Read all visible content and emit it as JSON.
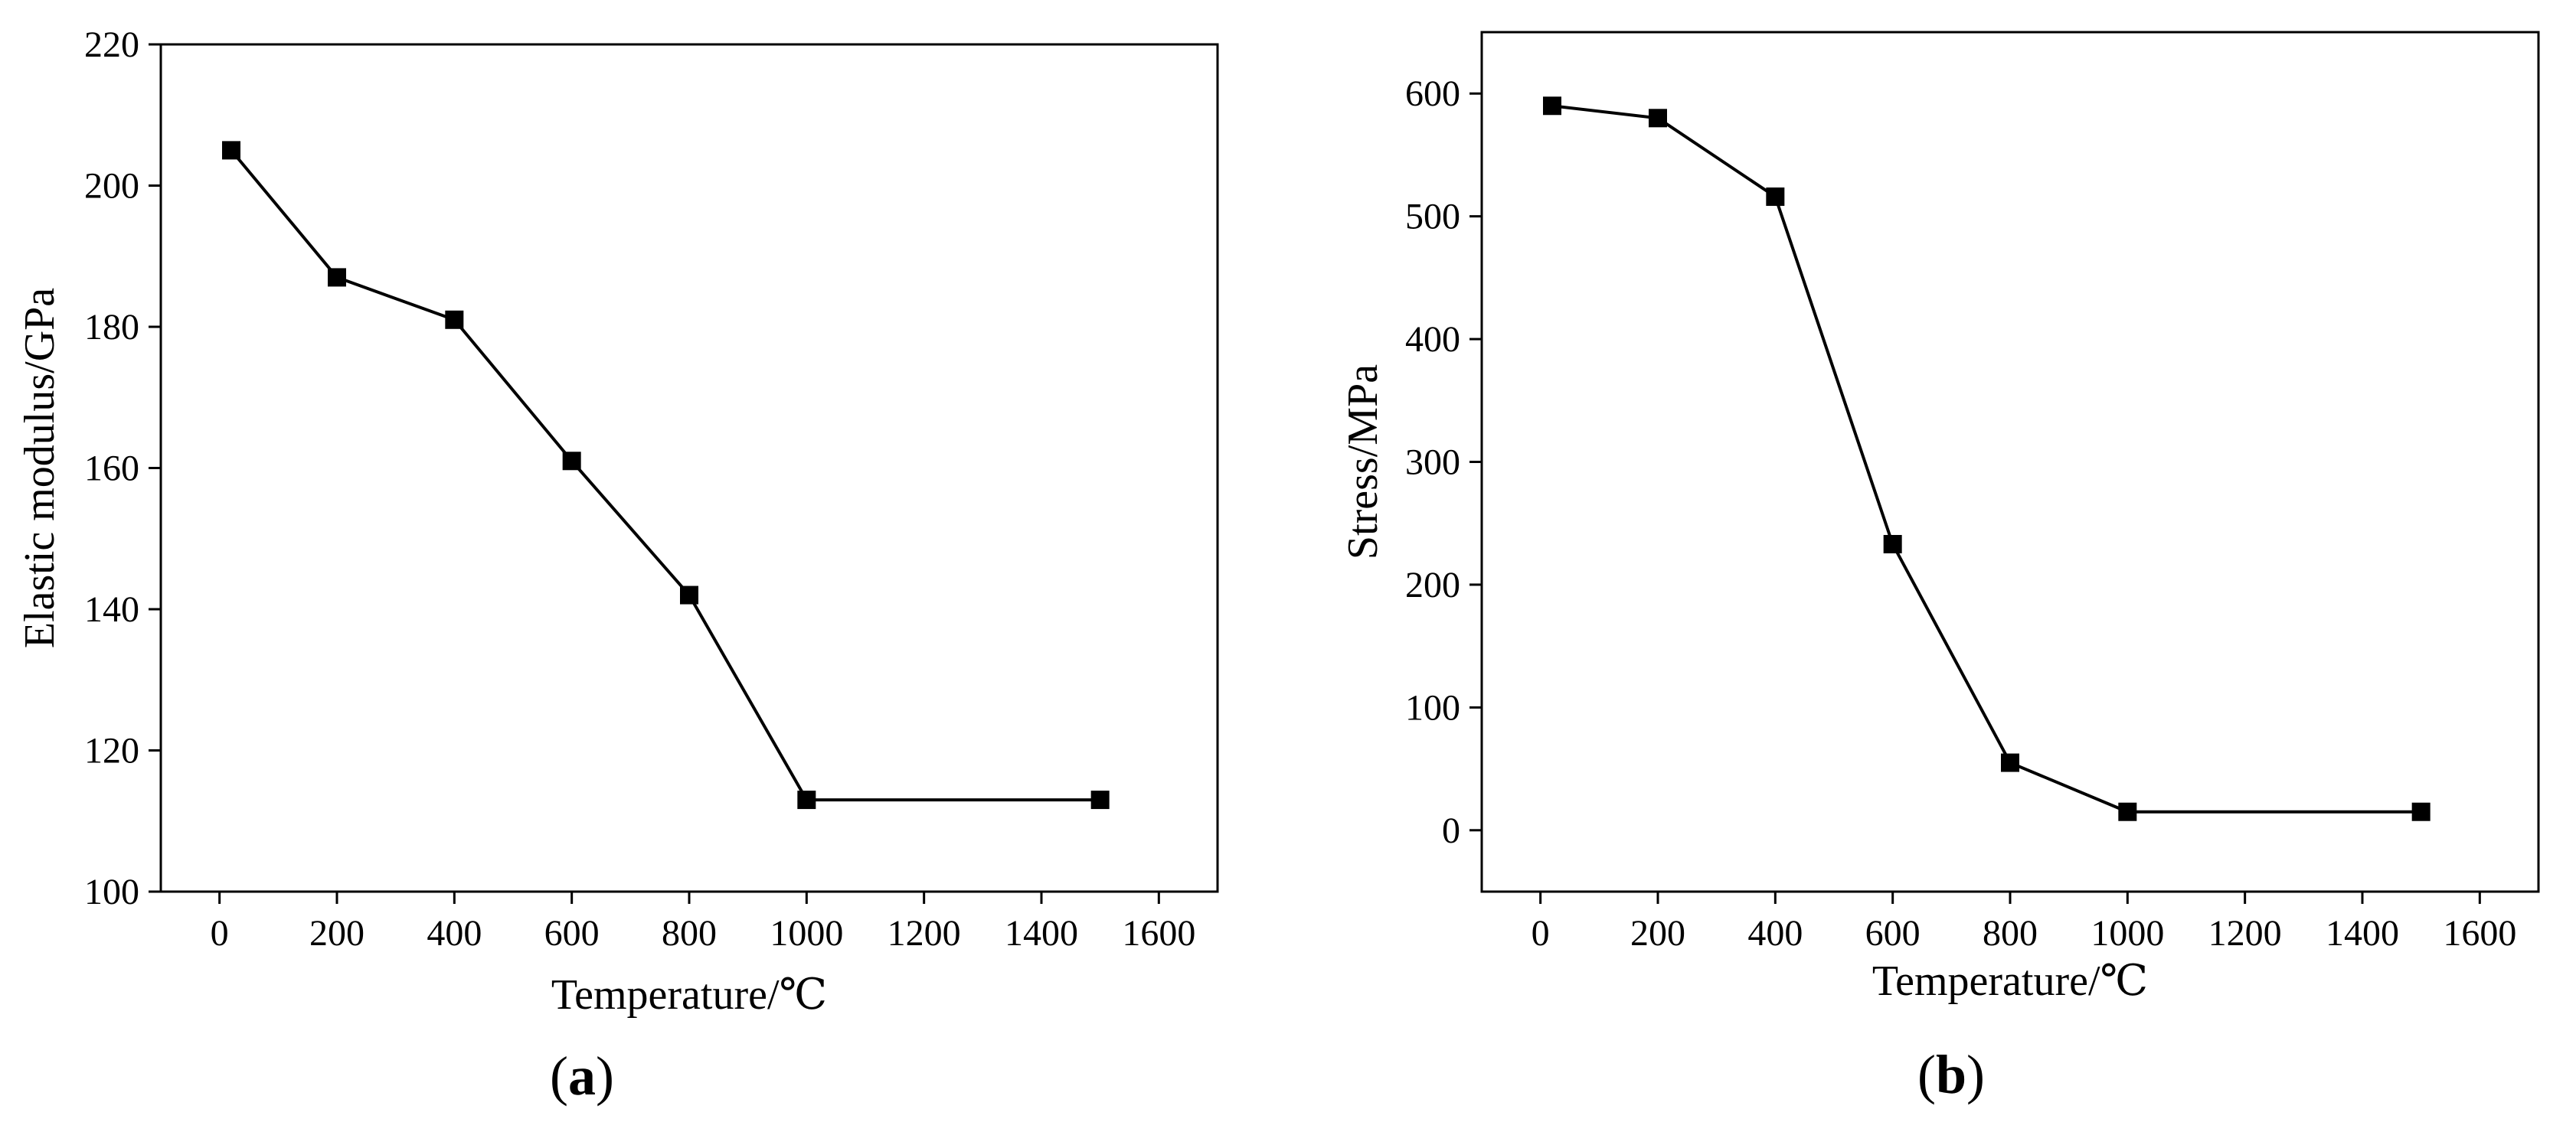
{
  "chart_data": [
    {
      "type": "line",
      "panel_label": {
        "open": "(",
        "letter": "a",
        "close": ")"
      },
      "title": "",
      "xlabel": "Temperature/℃",
      "ylabel": "Elastic modulus/GPa",
      "x": [
        20,
        200,
        400,
        600,
        800,
        1000,
        1500
      ],
      "series": [
        {
          "name": "Elastic modulus",
          "values": [
            205,
            187,
            181,
            161,
            142,
            113,
            113
          ]
        }
      ],
      "xlim": [
        -100,
        1700
      ],
      "ylim": [
        100,
        220
      ],
      "xticks": [
        0,
        200,
        400,
        600,
        800,
        1000,
        1200,
        1400,
        1600
      ],
      "xtick_labels": [
        "0",
        "200",
        "400",
        "600",
        "800",
        "1000",
        "1200",
        "1400",
        "1600"
      ],
      "yticks": [
        100,
        120,
        140,
        160,
        180,
        200,
        220
      ],
      "ytick_labels": [
        "100",
        "120",
        "140",
        "160",
        "180",
        "200",
        "220"
      ],
      "marker": "square",
      "color": "#000000",
      "grid": false
    },
    {
      "type": "line",
      "panel_label": {
        "open": "(",
        "letter": "b",
        "close": ")"
      },
      "title": "",
      "xlabel": "Temperature/℃",
      "ylabel": "Stress/MPa",
      "x": [
        20,
        200,
        400,
        600,
        800,
        1000,
        1500
      ],
      "series": [
        {
          "name": "Stress",
          "values": [
            590,
            580,
            516,
            233,
            55,
            15,
            15
          ]
        }
      ],
      "xlim": [
        -100,
        1700
      ],
      "ylim": [
        -50,
        650
      ],
      "xticks": [
        0,
        200,
        400,
        600,
        800,
        1000,
        1200,
        1400,
        1600
      ],
      "xtick_labels": [
        "0",
        "200",
        "400",
        "600",
        "800",
        "1000",
        "1200",
        "1400",
        "1600"
      ],
      "yticks": [
        0,
        100,
        200,
        300,
        400,
        500,
        600
      ],
      "ytick_labels": [
        "0",
        "100",
        "200",
        "300",
        "400",
        "500",
        "600"
      ],
      "marker": "square",
      "color": "#000000",
      "grid": false
    }
  ]
}
